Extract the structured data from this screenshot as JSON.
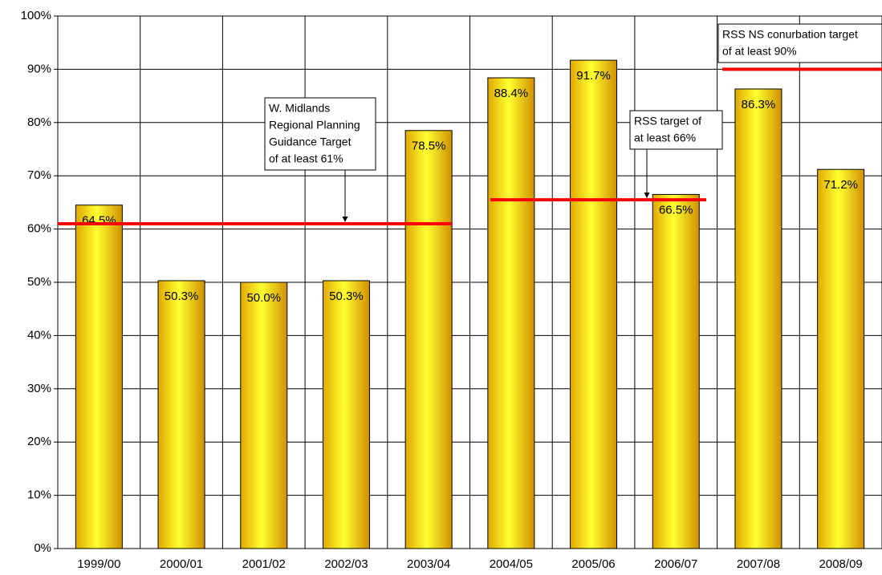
{
  "chart_data": {
    "type": "bar",
    "categories": [
      "1999/00",
      "2000/01",
      "2001/02",
      "2002/03",
      "2003/04",
      "2004/05",
      "2005/06",
      "2006/07",
      "2007/08",
      "2008/09"
    ],
    "values": [
      64.5,
      50.3,
      50.0,
      50.3,
      78.5,
      88.4,
      91.7,
      66.5,
      86.3,
      71.2
    ],
    "value_labels": [
      "64.5%",
      "50.3%",
      "50.0%",
      "50.3%",
      "78.5%",
      "88.4%",
      "91.7%",
      "66.5%",
      "86.3%",
      "71.2%"
    ],
    "color": "#ffd700",
    "ylim": [
      0,
      100
    ],
    "yticks": [
      {
        "value": 0,
        "label": "0%"
      },
      {
        "value": 10,
        "label": "10%"
      },
      {
        "value": 20,
        "label": "20%"
      },
      {
        "value": 30,
        "label": "30%"
      },
      {
        "value": 40,
        "label": "40%"
      },
      {
        "value": 50,
        "label": "50%"
      },
      {
        "value": 60,
        "label": "60%"
      },
      {
        "value": 70,
        "label": "70%"
      },
      {
        "value": 80,
        "label": "80%"
      },
      {
        "value": 90,
        "label": "90%"
      },
      {
        "value": 100,
        "label": "100%"
      }
    ],
    "grid": true,
    "targets": [
      {
        "value": 61,
        "color": "#ff0000",
        "label": [
          "W. Midlands",
          "Regional Planning",
          "Guidance Target",
          "of at least 61%"
        ]
      },
      {
        "value": 65.5,
        "color": "#ff0000",
        "label": [
          "RSS target of",
          "at least 66%"
        ]
      },
      {
        "value": 90,
        "color": "#ff0000",
        "label": [
          "RSS NS conurbation target",
          "of at least 90%"
        ]
      }
    ]
  }
}
